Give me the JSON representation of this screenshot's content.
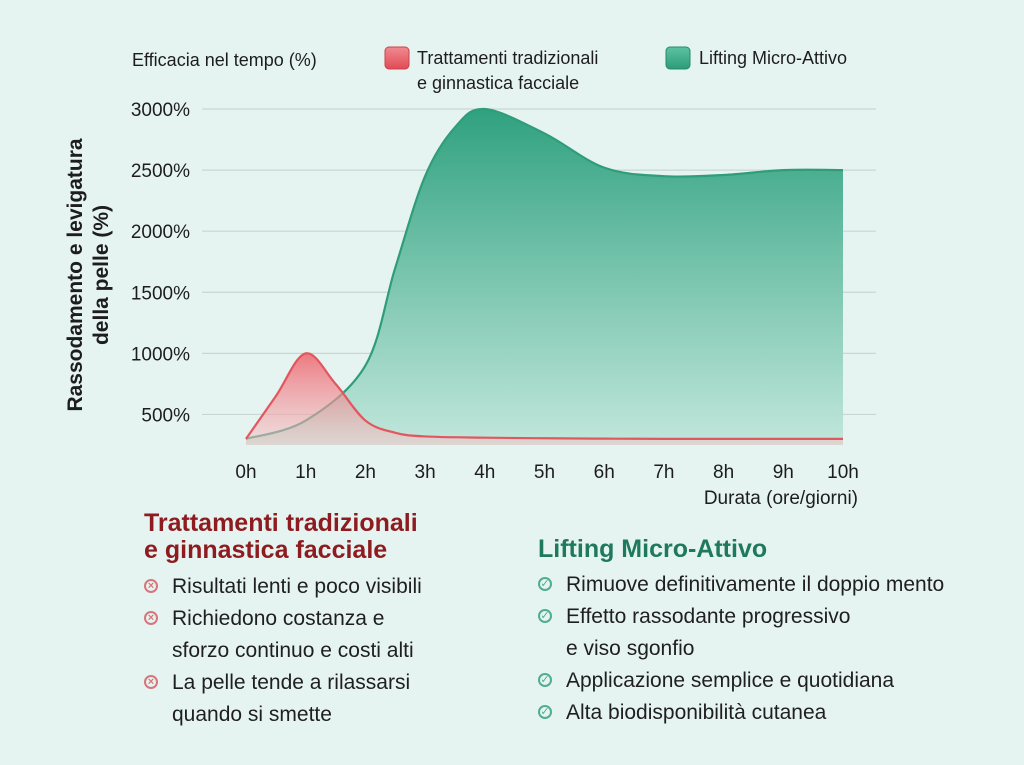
{
  "chart_data": {
    "type": "area",
    "title": "Efficacia nel tempo (%)",
    "xlabel": "Durata (ore/giorni)",
    "ylabel": [
      "Rassodamento e levigatura",
      "della pelle (%)"
    ],
    "categories": [
      "0h",
      "1h",
      "2h",
      "3h",
      "4h",
      "5h",
      "6h",
      "7h",
      "8h",
      "9h",
      "10h"
    ],
    "ylim": [
      250,
      3000
    ],
    "yticks": [
      500,
      1000,
      1500,
      2000,
      2500,
      3000
    ],
    "ytick_labels": [
      "500%",
      "1000%",
      "1500%",
      "2000%",
      "2500%",
      "3000%"
    ],
    "grid": true,
    "legend_position": "top",
    "series": [
      {
        "name": "Trattamenti tradizionali e ginnastica facciale",
        "legend_lines": [
          "Trattamenti tradizionali",
          "e ginnastica facciale"
        ],
        "color": "#e2575f",
        "x": [
          0,
          0.5,
          1,
          1.5,
          2,
          2.5,
          3,
          4,
          5,
          6,
          7,
          8,
          9,
          10
        ],
        "values": [
          300,
          650,
          1000,
          750,
          450,
          350,
          320,
          310,
          305,
          302,
          300,
          300,
          300,
          300
        ]
      },
      {
        "name": "Lifting Micro-Attivo",
        "legend_lines": [
          "Lifting Micro-Attivo"
        ],
        "color": "#3ea886",
        "x": [
          0,
          1,
          2,
          2.5,
          3,
          3.5,
          4,
          5,
          6,
          7,
          8,
          9,
          10
        ],
        "values": [
          300,
          450,
          900,
          1700,
          2450,
          2850,
          3000,
          2800,
          2520,
          2450,
          2460,
          2500,
          2500
        ]
      }
    ]
  },
  "comparison": {
    "traditional": {
      "title_lines": [
        "Trattamenti tradizionali",
        "e ginnastica facciale"
      ],
      "icon": "x-circle-icon",
      "color": "#8e1b1f",
      "items": [
        [
          "Risultati lenti e poco visibili"
        ],
        [
          "Richiedono costanza e",
          "sforzo continuo e costi alti"
        ],
        [
          "La pelle tende a rilassarsi",
          "quando si smette"
        ]
      ]
    },
    "lifting": {
      "title": "Lifting Micro-Attivo",
      "icon": "check-circle-icon",
      "color": "#1f7a5c",
      "items": [
        [
          "Rimuove definitivamente il doppio mento"
        ],
        [
          "Effetto rassodante progressivo",
          "e viso sgonfio"
        ],
        [
          "Applicazione semplice e quotidiana"
        ],
        [
          "Alta biodisponibilità cutanea"
        ]
      ]
    }
  }
}
